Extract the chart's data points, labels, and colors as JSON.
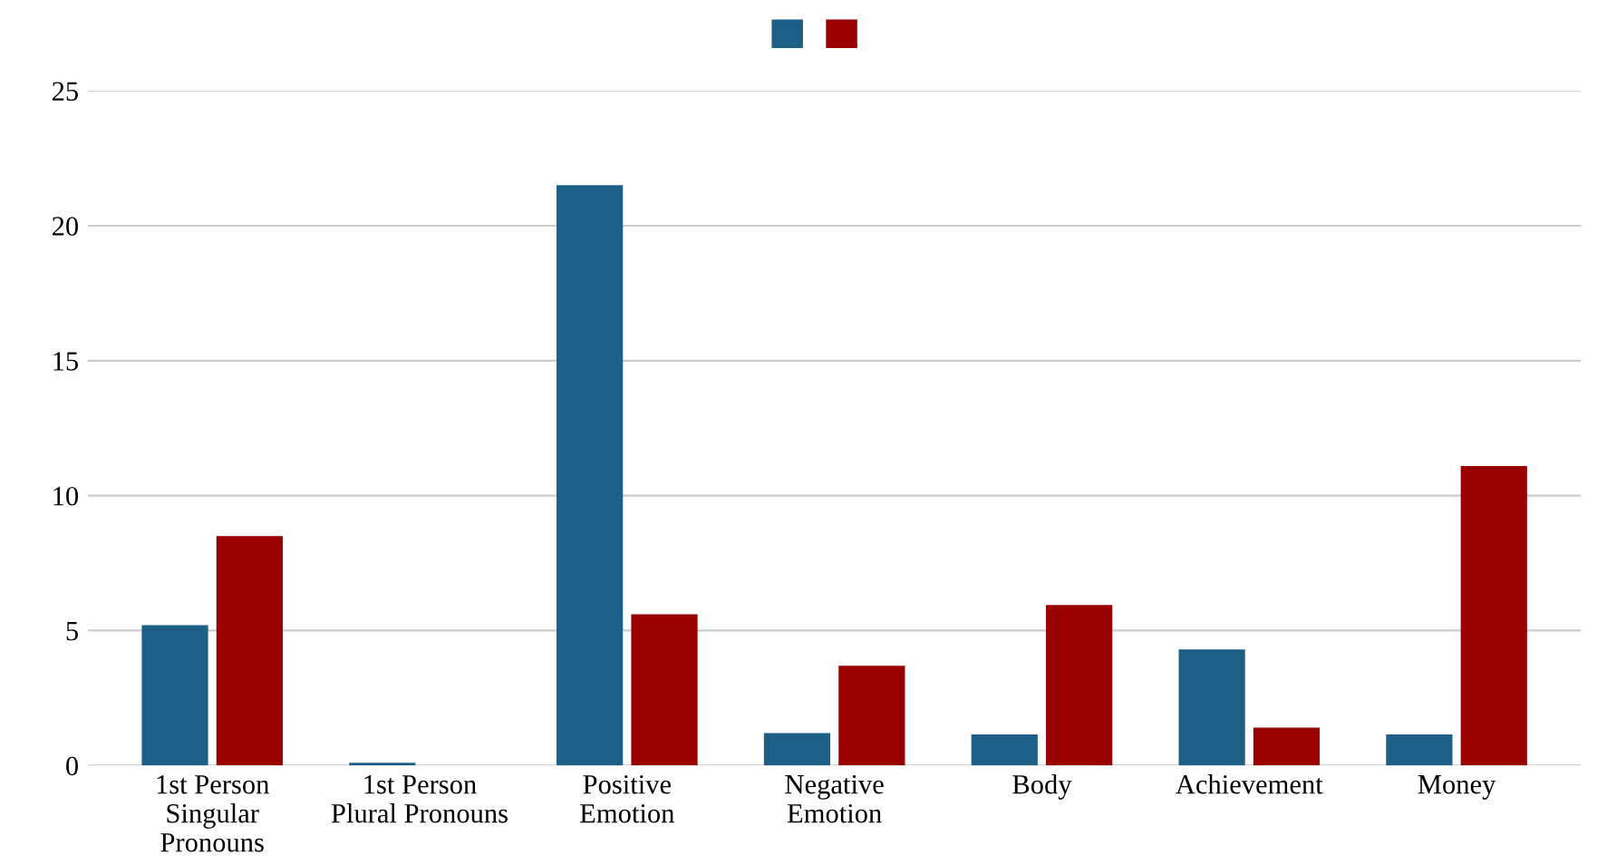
{
  "chart_data": {
    "type": "bar",
    "categories": [
      "1st Person\nSingular\nPronouns",
      "1st Person\nPlural Pronouns",
      "Positive\nEmotion",
      "Negative\nEmotion",
      "Body",
      "Achievement",
      "Money"
    ],
    "series": [
      {
        "color": "#1d5f86",
        "values": [
          5.2,
          0.1,
          21.5,
          1.2,
          1.15,
          4.3,
          1.15
        ]
      },
      {
        "color": "#990000",
        "values": [
          8.5,
          0,
          5.6,
          3.7,
          5.95,
          1.4,
          11.1
        ]
      }
    ],
    "ylim": [
      0,
      25
    ],
    "yticks": [
      0,
      5,
      10,
      15,
      20,
      25
    ],
    "grid": "y"
  }
}
